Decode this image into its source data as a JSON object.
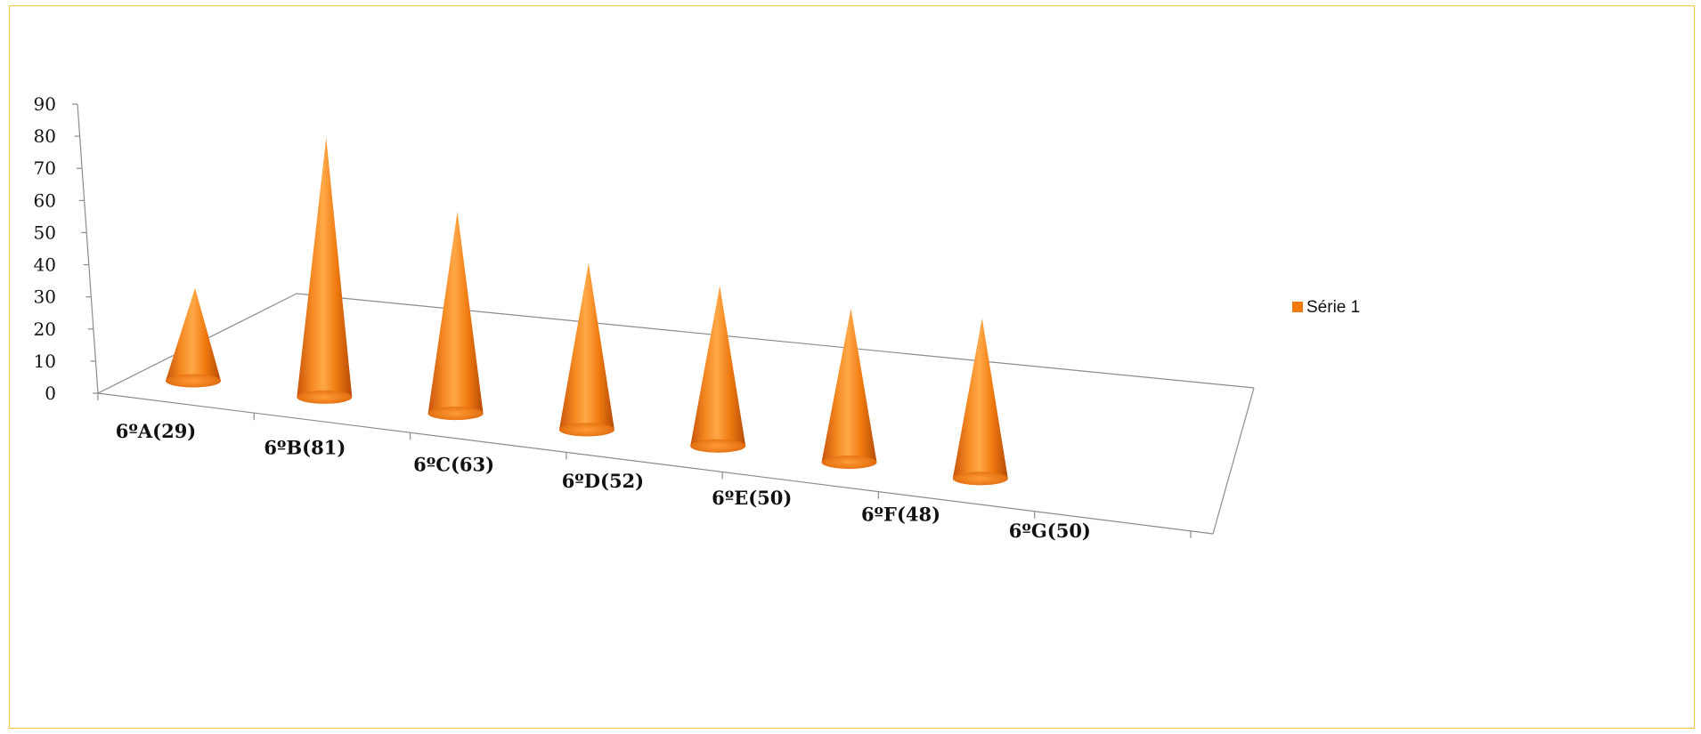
{
  "chart_data": {
    "type": "bar",
    "bar_shape": "3d-cone",
    "categories": [
      "6ºA(29)",
      "6ºB(81)",
      "6ºC(63)",
      "6ºD(52)",
      "6ºE(50)",
      "6ºF(48)",
      "6ºG(50)"
    ],
    "series": [
      {
        "name": "Série 1",
        "values": [
          29,
          81,
          63,
          52,
          50,
          48,
          50
        ],
        "color": "#f07a10"
      }
    ],
    "y_ticks": [
      "0",
      "10",
      "20",
      "30",
      "40",
      "50",
      "60",
      "70",
      "80",
      "90"
    ],
    "ylim": [
      0,
      90
    ],
    "grid": false,
    "legend_position": "right",
    "colors": {
      "frame_border": "#f3c53b",
      "axis": "#8c8c8c",
      "cone_base": "#f07a10"
    }
  }
}
